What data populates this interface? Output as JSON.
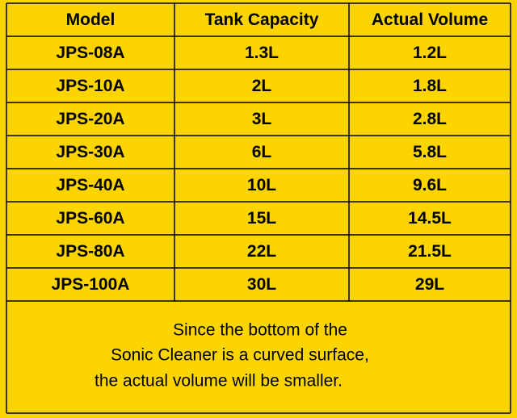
{
  "table": {
    "header": [
      "Model",
      "Tank Capacity",
      "Actual Volume"
    ],
    "rows": [
      [
        "JPS-08A",
        "1.3L",
        "1.2L"
      ],
      [
        "JPS-10A",
        "2L",
        "1.8L"
      ],
      [
        "JPS-20A",
        "3L",
        "2.8L"
      ],
      [
        "JPS-30A",
        "6L",
        "5.8L"
      ],
      [
        "JPS-40A",
        "10L",
        "9.6L"
      ],
      [
        "JPS-60A",
        "15L",
        "14.5L"
      ],
      [
        "JPS-80A",
        "22L",
        "21.5L"
      ],
      [
        "JPS-100A",
        "30L",
        "29L"
      ]
    ]
  },
  "note": [
    "Since the bottom of the",
    "Sonic Cleaner is a curved surface,",
    "the actual volume will be smaller."
  ]
}
